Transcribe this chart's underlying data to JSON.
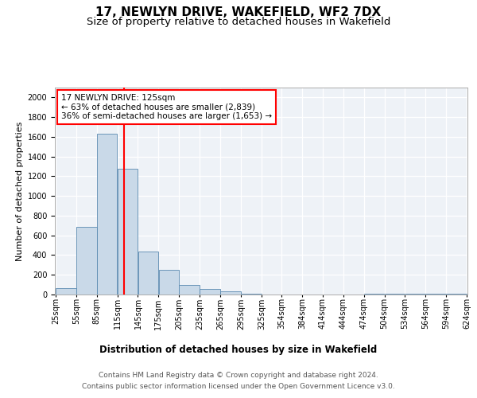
{
  "title": "17, NEWLYN DRIVE, WAKEFIELD, WF2 7DX",
  "subtitle": "Size of property relative to detached houses in Wakefield",
  "xlabel": "Distribution of detached houses by size in Wakefield",
  "ylabel": "Number of detached properties",
  "footnote1": "Contains HM Land Registry data © Crown copyright and database right 2024.",
  "footnote2": "Contains public sector information licensed under the Open Government Licence v3.0.",
  "annotation_title": "17 NEWLYN DRIVE: 125sqm",
  "annotation_line2": "← 63% of detached houses are smaller (2,839)",
  "annotation_line3": "36% of semi-detached houses are larger (1,653) →",
  "property_size": 125,
  "bar_left_edges": [
    25,
    55,
    85,
    115,
    145,
    175,
    205,
    235,
    265,
    295,
    325,
    354,
    384,
    414,
    444,
    474,
    504,
    534,
    564,
    594
  ],
  "bar_widths": [
    30,
    30,
    30,
    30,
    30,
    30,
    30,
    30,
    30,
    30,
    29,
    30,
    30,
    30,
    30,
    30,
    30,
    30,
    30,
    30
  ],
  "bar_heights": [
    65,
    690,
    1630,
    1280,
    440,
    250,
    100,
    55,
    30,
    5,
    2,
    2,
    2,
    2,
    2,
    5,
    5,
    5,
    5,
    5
  ],
  "bar_color": "#c9d9e8",
  "bar_edge_color": "#5a8ab0",
  "red_line_x": 125,
  "ylim": [
    0,
    2100
  ],
  "yticks": [
    0,
    200,
    400,
    600,
    800,
    1000,
    1200,
    1400,
    1600,
    1800,
    2000
  ],
  "xtick_labels": [
    "25sqm",
    "55sqm",
    "85sqm",
    "115sqm",
    "145sqm",
    "175sqm",
    "205sqm",
    "235sqm",
    "265sqm",
    "295sqm",
    "325sqm",
    "354sqm",
    "384sqm",
    "414sqm",
    "444sqm",
    "474sqm",
    "504sqm",
    "534sqm",
    "564sqm",
    "594sqm",
    "624sqm"
  ],
  "bg_color": "#eef2f7",
  "grid_color": "#ffffff",
  "title_fontsize": 11,
  "subtitle_fontsize": 9.5,
  "ylabel_fontsize": 8,
  "xlabel_fontsize": 8.5,
  "tick_fontsize": 7,
  "annotation_fontsize": 7.5,
  "footnote_fontsize": 6.5
}
